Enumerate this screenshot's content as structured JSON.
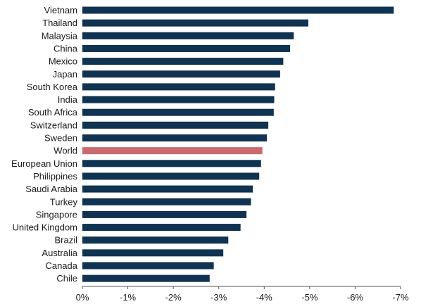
{
  "chart_data": {
    "type": "bar",
    "orientation": "horizontal",
    "title": "",
    "xlabel": "",
    "ylabel": "",
    "categories": [
      "Vietnam",
      "Thailand",
      "Malaysia",
      "China",
      "Mexico",
      "Japan",
      "South Korea",
      "India",
      "South Africa",
      "Switzerland",
      "Sweden",
      "World",
      "European Union",
      "Philippines",
      "Saudi Arabia",
      "Turkey",
      "Singapore",
      "United Kingdom",
      "Brazil",
      "Australia",
      "Canada",
      "Chile"
    ],
    "values": [
      -6.85,
      -4.97,
      -4.65,
      -4.57,
      -4.42,
      -4.35,
      -4.24,
      -4.22,
      -4.21,
      -4.09,
      -4.06,
      -3.96,
      -3.93,
      -3.89,
      -3.75,
      -3.71,
      -3.61,
      -3.48,
      -3.21,
      -3.1,
      -2.89,
      -2.8
    ],
    "highlight": "World",
    "colors": {
      "bar": "#0f3350",
      "highlight": "#c96a6f",
      "axis": "#555555",
      "text": "#1a1a1a"
    },
    "xlim": [
      0,
      -7
    ],
    "xticks": [
      0,
      -1,
      -2,
      -3,
      -4,
      -5,
      -6,
      -7
    ],
    "xtick_labels": [
      "0%",
      "-1%",
      "-2%",
      "-3%",
      "-4%",
      "-5%",
      "-6%",
      "-7%"
    ],
    "grid": false,
    "legend": "none"
  }
}
